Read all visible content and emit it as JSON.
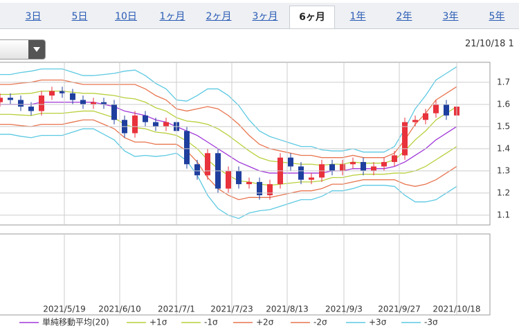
{
  "tabs": [
    "3日",
    "5日",
    "10日",
    "1ヶ月",
    "2ヶ月",
    "3ヶ月",
    "6ヶ月",
    "1年",
    "2年",
    "3年",
    "5年"
  ],
  "selected_tab_index": 6,
  "date_label": "21/10/18 1",
  "chart_data": {
    "type": "candlestick",
    "x": [
      0,
      3,
      6,
      9,
      12,
      15,
      18,
      21,
      24,
      27,
      30,
      33,
      36,
      39,
      42,
      45,
      48,
      51,
      54,
      57,
      60,
      63,
      66,
      69,
      72,
      75,
      78,
      81,
      84,
      87,
      90,
      93,
      96,
      99,
      102,
      105,
      108,
      111,
      114,
      117,
      120,
      123,
      126,
      129,
      132
    ],
    "open": [
      1.61,
      1.63,
      1.62,
      1.59,
      1.57,
      1.64,
      1.66,
      1.65,
      1.62,
      1.6,
      1.61,
      1.6,
      1.53,
      1.47,
      1.55,
      1.52,
      1.5,
      1.52,
      1.48,
      1.33,
      1.28,
      1.38,
      1.22,
      1.3,
      1.24,
      1.25,
      1.19,
      1.24,
      1.36,
      1.32,
      1.26,
      1.27,
      1.33,
      1.3,
      1.33,
      1.34,
      1.3,
      1.32,
      1.34,
      1.37,
      1.52,
      1.53,
      1.56,
      1.6,
      1.55
    ],
    "high": [
      1.65,
      1.65,
      1.64,
      1.61,
      1.66,
      1.68,
      1.68,
      1.67,
      1.64,
      1.63,
      1.63,
      1.62,
      1.55,
      1.57,
      1.57,
      1.54,
      1.54,
      1.54,
      1.5,
      1.35,
      1.4,
      1.4,
      1.32,
      1.32,
      1.27,
      1.27,
      1.26,
      1.38,
      1.38,
      1.34,
      1.29,
      1.35,
      1.35,
      1.35,
      1.36,
      1.36,
      1.34,
      1.36,
      1.39,
      1.54,
      1.55,
      1.58,
      1.62,
      1.62,
      1.61
    ],
    "low": [
      1.59,
      1.6,
      1.57,
      1.55,
      1.55,
      1.62,
      1.63,
      1.6,
      1.58,
      1.58,
      1.58,
      1.51,
      1.45,
      1.45,
      1.5,
      1.48,
      1.48,
      1.46,
      1.31,
      1.26,
      1.26,
      1.2,
      1.2,
      1.22,
      1.22,
      1.17,
      1.17,
      1.22,
      1.3,
      1.24,
      1.24,
      1.25,
      1.28,
      1.28,
      1.31,
      1.28,
      1.28,
      1.3,
      1.32,
      1.35,
      1.5,
      1.51,
      1.54,
      1.53,
      1.53
    ],
    "close": [
      1.63,
      1.62,
      1.59,
      1.57,
      1.64,
      1.66,
      1.65,
      1.62,
      1.6,
      1.61,
      1.6,
      1.53,
      1.47,
      1.55,
      1.52,
      1.5,
      1.52,
      1.48,
      1.33,
      1.28,
      1.38,
      1.22,
      1.3,
      1.24,
      1.25,
      1.19,
      1.24,
      1.36,
      1.32,
      1.26,
      1.27,
      1.33,
      1.3,
      1.33,
      1.34,
      1.3,
      1.32,
      1.34,
      1.37,
      1.52,
      1.53,
      1.56,
      1.6,
      1.55,
      1.59
    ],
    "up_color": "#e8323c",
    "down_color": "#1f3f9e",
    "series": [
      {
        "name": "単純移動平均(20)",
        "color": "#a036d8",
        "values": [
          1.6,
          1.6,
          1.6,
          1.6,
          1.61,
          1.61,
          1.61,
          1.61,
          1.61,
          1.61,
          1.6,
          1.59,
          1.57,
          1.56,
          1.55,
          1.53,
          1.52,
          1.5,
          1.48,
          1.46,
          1.43,
          1.4,
          1.37,
          1.34,
          1.32,
          1.3,
          1.29,
          1.29,
          1.29,
          1.29,
          1.29,
          1.29,
          1.3,
          1.3,
          1.31,
          1.31,
          1.31,
          1.31,
          1.32,
          1.34,
          1.37,
          1.4,
          1.44,
          1.47,
          1.5
        ]
      },
      {
        "name": "+1σ",
        "color": "#b9cf3c",
        "values": [
          1.645,
          1.645,
          1.648,
          1.65,
          1.66,
          1.66,
          1.66,
          1.655,
          1.65,
          1.65,
          1.645,
          1.64,
          1.63,
          1.625,
          1.61,
          1.585,
          1.57,
          1.54,
          1.525,
          1.52,
          1.51,
          1.49,
          1.46,
          1.425,
          1.39,
          1.36,
          1.345,
          1.34,
          1.335,
          1.33,
          1.33,
          1.325,
          1.33,
          1.33,
          1.34,
          1.335,
          1.335,
          1.335,
          1.35,
          1.39,
          1.44,
          1.48,
          1.53,
          1.56,
          1.59
        ]
      },
      {
        "name": "-1σ",
        "color": "#b9cf3c",
        "values": [
          1.555,
          1.555,
          1.552,
          1.55,
          1.56,
          1.56,
          1.56,
          1.565,
          1.57,
          1.57,
          1.555,
          1.54,
          1.51,
          1.495,
          1.49,
          1.475,
          1.47,
          1.46,
          1.435,
          1.4,
          1.35,
          1.31,
          1.28,
          1.255,
          1.25,
          1.24,
          1.235,
          1.24,
          1.245,
          1.25,
          1.25,
          1.255,
          1.27,
          1.27,
          1.28,
          1.285,
          1.285,
          1.285,
          1.29,
          1.29,
          1.3,
          1.32,
          1.35,
          1.38,
          1.41
        ]
      },
      {
        "name": "+2σ",
        "color": "#e8744e",
        "values": [
          1.69,
          1.69,
          1.696,
          1.7,
          1.71,
          1.71,
          1.71,
          1.7,
          1.69,
          1.69,
          1.69,
          1.69,
          1.69,
          1.69,
          1.67,
          1.64,
          1.62,
          1.58,
          1.57,
          1.58,
          1.59,
          1.58,
          1.55,
          1.51,
          1.46,
          1.42,
          1.4,
          1.39,
          1.38,
          1.37,
          1.37,
          1.36,
          1.36,
          1.36,
          1.37,
          1.36,
          1.36,
          1.36,
          1.38,
          1.44,
          1.51,
          1.56,
          1.62,
          1.65,
          1.68
        ]
      },
      {
        "name": "-2σ",
        "color": "#e8744e",
        "values": [
          1.51,
          1.51,
          1.504,
          1.5,
          1.51,
          1.51,
          1.51,
          1.52,
          1.53,
          1.53,
          1.51,
          1.49,
          1.45,
          1.43,
          1.43,
          1.42,
          1.42,
          1.42,
          1.39,
          1.34,
          1.27,
          1.22,
          1.19,
          1.17,
          1.18,
          1.18,
          1.18,
          1.19,
          1.2,
          1.21,
          1.21,
          1.22,
          1.24,
          1.24,
          1.25,
          1.26,
          1.26,
          1.26,
          1.26,
          1.24,
          1.23,
          1.24,
          1.26,
          1.29,
          1.32
        ]
      },
      {
        "name": "+3σ",
        "color": "#5cc9e2",
        "values": [
          1.735,
          1.735,
          1.744,
          1.75,
          1.76,
          1.76,
          1.76,
          1.745,
          1.73,
          1.73,
          1.735,
          1.74,
          1.75,
          1.755,
          1.73,
          1.695,
          1.67,
          1.62,
          1.615,
          1.64,
          1.67,
          1.67,
          1.64,
          1.595,
          1.53,
          1.48,
          1.455,
          1.44,
          1.425,
          1.41,
          1.41,
          1.395,
          1.39,
          1.39,
          1.4,
          1.385,
          1.385,
          1.385,
          1.41,
          1.49,
          1.58,
          1.64,
          1.71,
          1.74,
          1.77
        ]
      },
      {
        "name": "-3σ",
        "color": "#5cc9e2",
        "values": [
          1.465,
          1.465,
          1.456,
          1.45,
          1.46,
          1.46,
          1.46,
          1.475,
          1.49,
          1.49,
          1.465,
          1.44,
          1.39,
          1.365,
          1.37,
          1.365,
          1.37,
          1.38,
          1.345,
          1.28,
          1.19,
          1.13,
          1.1,
          1.085,
          1.11,
          1.12,
          1.125,
          1.14,
          1.155,
          1.17,
          1.17,
          1.185,
          1.21,
          1.21,
          1.22,
          1.235,
          1.235,
          1.235,
          1.23,
          1.19,
          1.16,
          1.16,
          1.17,
          1.2,
          1.23
        ]
      }
    ],
    "xlim": [
      0,
      141.6
    ],
    "xticks": [
      {
        "value": 18.6,
        "label": "2021/5/19"
      },
      {
        "value": 34.6,
        "label": "2021/6/10"
      },
      {
        "value": 51,
        "label": "2021/7/1"
      },
      {
        "value": 67,
        "label": "2021/7/23"
      },
      {
        "value": 83,
        "label": "2021/8/13"
      },
      {
        "value": 99.4,
        "label": "2021/9/3"
      },
      {
        "value": 115.4,
        "label": "2021/9/27"
      },
      {
        "value": 132,
        "label": "2021/10/18"
      }
    ],
    "ylim": [
      1.056,
      1.79
    ],
    "yticks": [
      1.1,
      1.2,
      1.3,
      1.4,
      1.5,
      1.6,
      1.7
    ],
    "grid": true
  }
}
